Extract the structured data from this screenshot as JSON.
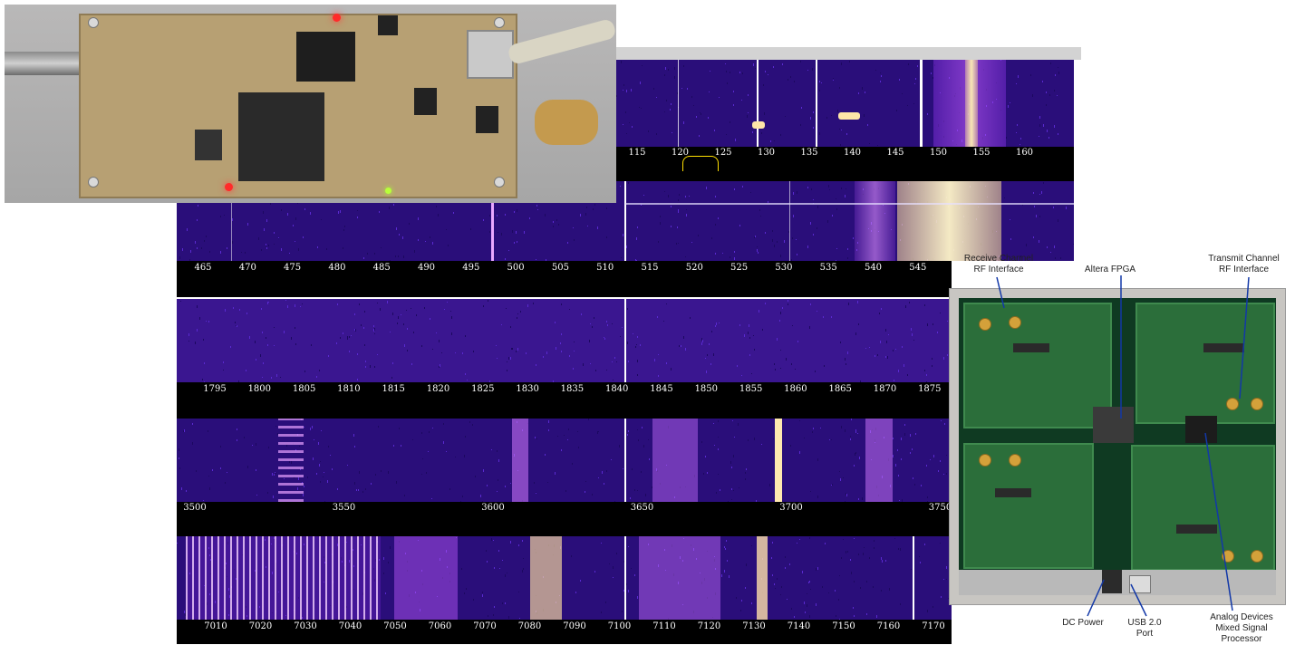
{
  "scales": {
    "band_160_top": [
      "115",
      "120",
      "125",
      "130",
      "135",
      "140",
      "145",
      "150",
      "155",
      "160"
    ],
    "band_500": [
      "465",
      "470",
      "475",
      "480",
      "485",
      "490",
      "495",
      "500",
      "505",
      "510",
      "515",
      "520",
      "525",
      "530",
      "535",
      "540",
      "545"
    ],
    "band_1800": [
      "1795",
      "1800",
      "1805",
      "1810",
      "1815",
      "1820",
      "1825",
      "1830",
      "1835",
      "1840",
      "1845",
      "1850",
      "1855",
      "1860",
      "1865",
      "1870",
      "1875"
    ],
    "band_3600": [
      "3500",
      "3550",
      "3600",
      "3650",
      "3700",
      "3750"
    ],
    "band_7100": [
      "7010",
      "7020",
      "7030",
      "7040",
      "7050",
      "7060",
      "7070",
      "7080",
      "7090",
      "7100",
      "7110",
      "7120",
      "7130",
      "7140",
      "7150",
      "7160",
      "7170"
    ]
  },
  "board": {
    "labels": {
      "receive": "Receive Channel\nRF Interface",
      "fpga": "Altera FPGA",
      "transmit": "Transmit Channel\nRF Interface",
      "dc_power": "DC Power",
      "usb": "USB 2.0\nPort",
      "adi": "Analog Devices\nMixed Signal\nProcessor"
    }
  },
  "colors": {
    "waterfall_bg": "#2a0e7a",
    "waterfall_hot": "#ffe58a",
    "scale_bg": "#000000",
    "pointer": "#1238a8",
    "filter": "#ffe000"
  }
}
